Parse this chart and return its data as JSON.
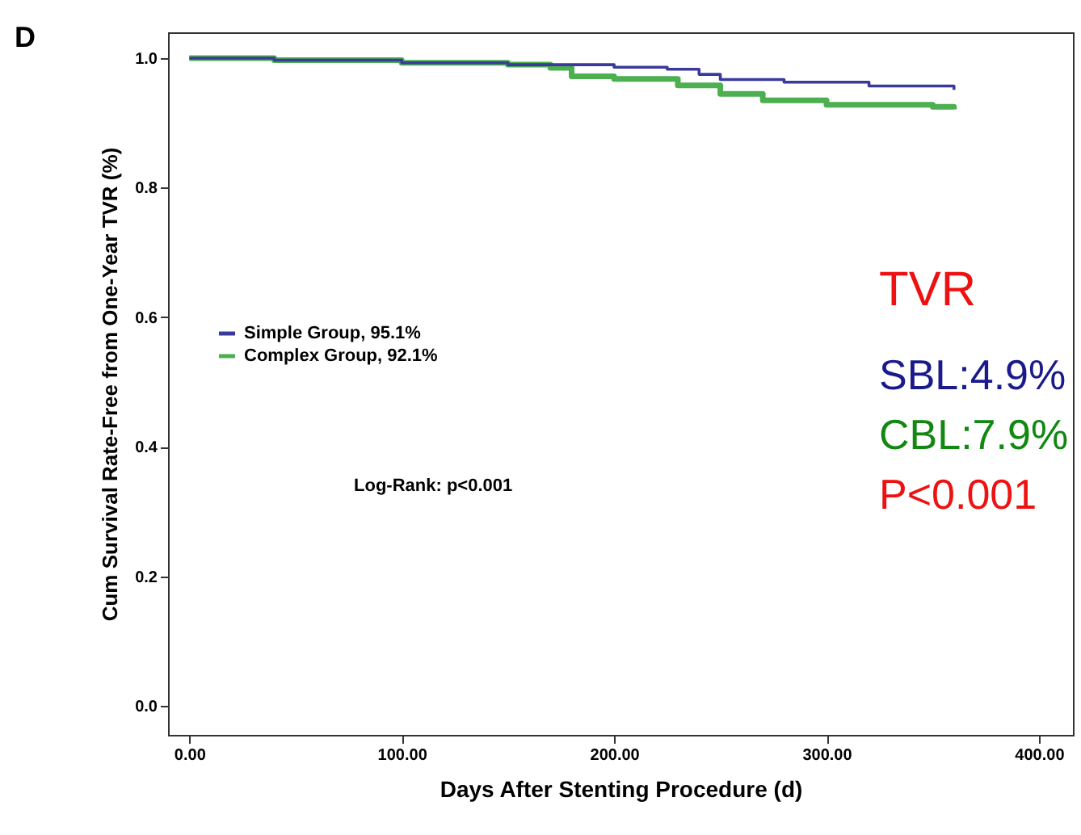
{
  "chart_data": {
    "type": "step",
    "xlabel": "Days After Stenting Procedure (d)",
    "ylabel": "Cum Survival Rate-Free from One-Year TVR (%)",
    "annotations": [
      "D",
      "Log-Rank: p<0.001",
      "TVR",
      "SBL:4.9%",
      "CBL:7.9%",
      "P<0.001"
    ],
    "xlim": [
      -10,
      416
    ],
    "ylim": [
      -0.045,
      1.04
    ],
    "xticks": [
      {
        "value": 0,
        "label": "0.00"
      },
      {
        "value": 100,
        "label": "100.00"
      },
      {
        "value": 200,
        "label": "200.00"
      },
      {
        "value": 300,
        "label": "300.00"
      },
      {
        "value": 400,
        "label": "400.00"
      }
    ],
    "yticks": [
      {
        "value": 0,
        "label": "0.0"
      },
      {
        "value": 0.2,
        "label": "0.2"
      },
      {
        "value": 0.4,
        "label": "0.4"
      },
      {
        "value": 0.6,
        "label": "0.6"
      },
      {
        "value": 0.8,
        "label": "0.8"
      },
      {
        "value": 1.0,
        "label": "1.0"
      }
    ],
    "grid": false,
    "legend": "left",
    "line_style": "solid",
    "series": [
      {
        "name": "Simple Group, 95.1%",
        "color": "#3a3a9c",
        "x": [
          0,
          40,
          100,
          150,
          200,
          225,
          240,
          250,
          280,
          320,
          360
        ],
        "values": [
          1.0,
          0.997,
          0.993,
          0.99,
          0.986,
          0.983,
          0.975,
          0.967,
          0.963,
          0.957,
          0.951
        ]
      },
      {
        "name": "Complex Group, 92.1%",
        "color": "#4caf50",
        "x": [
          0,
          40,
          100,
          150,
          170,
          180,
          200,
          230,
          250,
          270,
          300,
          350,
          360
        ],
        "values": [
          1.0,
          0.997,
          0.993,
          0.99,
          0.985,
          0.972,
          0.968,
          0.958,
          0.945,
          0.935,
          0.928,
          0.925,
          0.921
        ]
      }
    ]
  }
}
